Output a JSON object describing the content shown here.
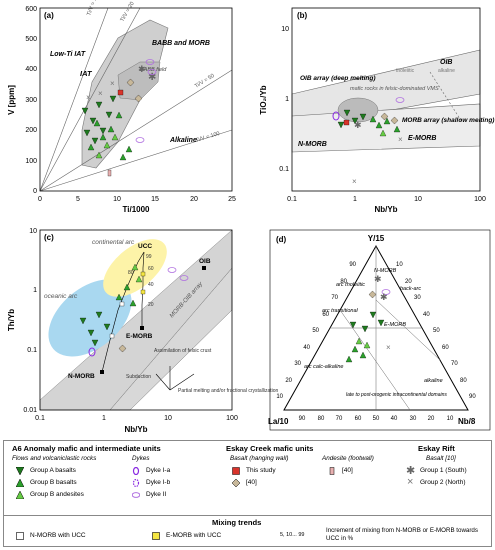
{
  "panels": {
    "a": {
      "letter": "(a)",
      "xlabel": "Ti/1000",
      "ylabel": "V [ppm]",
      "xticks": [
        "0",
        "5",
        "10",
        "15",
        "20",
        "25"
      ],
      "yticks": [
        "0",
        "100",
        "200",
        "300",
        "400",
        "500",
        "600"
      ],
      "region_labels": [
        "Low-Ti IAT",
        "IAT",
        "BABB and MORB",
        "BABB field",
        "Alkaline"
      ],
      "ratio_lines": [
        "Ti/V = 10",
        "Ti/V = 20",
        "Ti/V = 50",
        "Ti/V = 100"
      ]
    },
    "b": {
      "letter": "(b)",
      "xlabel": "Nb/Yb",
      "ylabel": "TiO₂/Yb",
      "xticks": [
        "0.1",
        "1",
        "10",
        "100"
      ],
      "yticks": [
        "0.1",
        "1",
        "10"
      ],
      "region_labels": [
        "OIB array (deep melting)",
        "OIB",
        "MORB array (shallow melting)",
        "N-MORB",
        "E-MORB",
        "mafic rocks in felsic-dominated VMS",
        "tholeiitic",
        "alkaline"
      ]
    },
    "c": {
      "letter": "(c)",
      "xlabel": "Nb/Yb",
      "ylabel": "Th/Yb",
      "xticks": [
        "0.1",
        "1",
        "10",
        "100"
      ],
      "yticks": [
        "0.01",
        "0.1",
        "1",
        "10"
      ],
      "region_labels": [
        "continental arc",
        "oceanic arc",
        "MORB-OIB array",
        "UCC",
        "OIB",
        "E-MORB",
        "N-MORB"
      ],
      "mix_labels": [
        "5",
        "10",
        "20",
        "40",
        "60",
        "80",
        "99"
      ],
      "vector_labels": [
        "Assimilation of felsic crust",
        "Subduction",
        "Partial melting and/or fractional crystallization"
      ]
    },
    "d": {
      "letter": "(d)",
      "apex_top": "Y/15",
      "apex_left": "La/10",
      "apex_right": "Nb/8",
      "ticks": [
        "10",
        "20",
        "30",
        "40",
        "50",
        "60",
        "70",
        "80",
        "90"
      ],
      "region_labels": [
        "arc tholeiitic",
        "N-MORB",
        "back-arc",
        "arc transitional",
        "E-MORB",
        "arc calc-alkaline",
        "alkaline",
        "late to post-orogenic intracontinental domains"
      ]
    }
  },
  "legend": {
    "group1_title": "A6 Anomaly mafic and intermediate units",
    "flows_title": "Flows and volcaniclastic rocks",
    "flows": [
      "Group A basalts",
      "Group B basalts",
      "Group B andesites"
    ],
    "dykes_title": "Dykes",
    "dykes": [
      "Dyke I-a",
      "Dyke I-b",
      "Dyke II"
    ],
    "group2_title": "Eskay Creek mafic units",
    "basalt_title": "Basalt (hanging wall)",
    "basalt": [
      "This study",
      "[40]"
    ],
    "andesite_title": "Andesite (footwall)",
    "andesite": [
      "[40]"
    ],
    "group3_title": "Eskay Rift",
    "rift_title": "Basalt [10]",
    "rift": [
      "Group 1 (South)",
      "Group 2 (North)"
    ],
    "mixing_title": "Mixing trends",
    "mixing": [
      "N-MORB with UCC",
      "E-MORB with UCC"
    ],
    "mix_increment_label": "5, 10... 99",
    "mix_increment_text": "Increment of mixing from N-MORB or E-MORB towards UCC in %"
  },
  "colors": {
    "green": "#2ca02c",
    "dark_green": "#1f7a1f",
    "light_green": "#66cc44",
    "purple": "#8a2be2",
    "red": "#d9342b",
    "tan": "#c8b89a",
    "pink": "#e8b0b0",
    "gray_field": "#d8d8d8",
    "blue_field": "#a9d8f0",
    "yellow_field": "#fdf3a8"
  }
}
